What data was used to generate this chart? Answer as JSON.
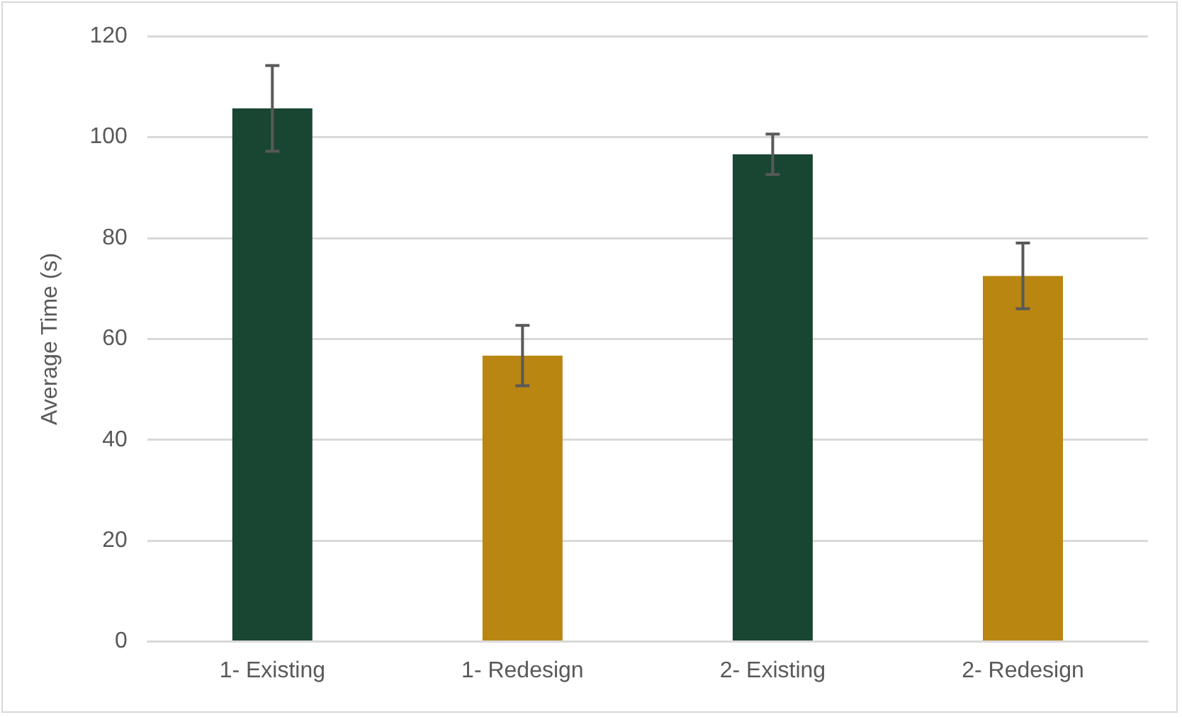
{
  "chart_data": {
    "type": "bar",
    "ylabel": "Average Time (s)",
    "categories": [
      "1- Existing",
      "1- Redesign",
      "2- Existing",
      "2- Redesign"
    ],
    "values": [
      105.7,
      56.7,
      96.6,
      72.5
    ],
    "errors": [
      8.5,
      6,
      4,
      6.5
    ],
    "colors": [
      "#184632",
      "#b88611",
      "#184632",
      "#b88611"
    ],
    "ylim": [
      0,
      120
    ],
    "yticks": [
      0,
      20,
      40,
      60,
      80,
      100,
      120
    ],
    "grid": "y",
    "legend": false
  }
}
